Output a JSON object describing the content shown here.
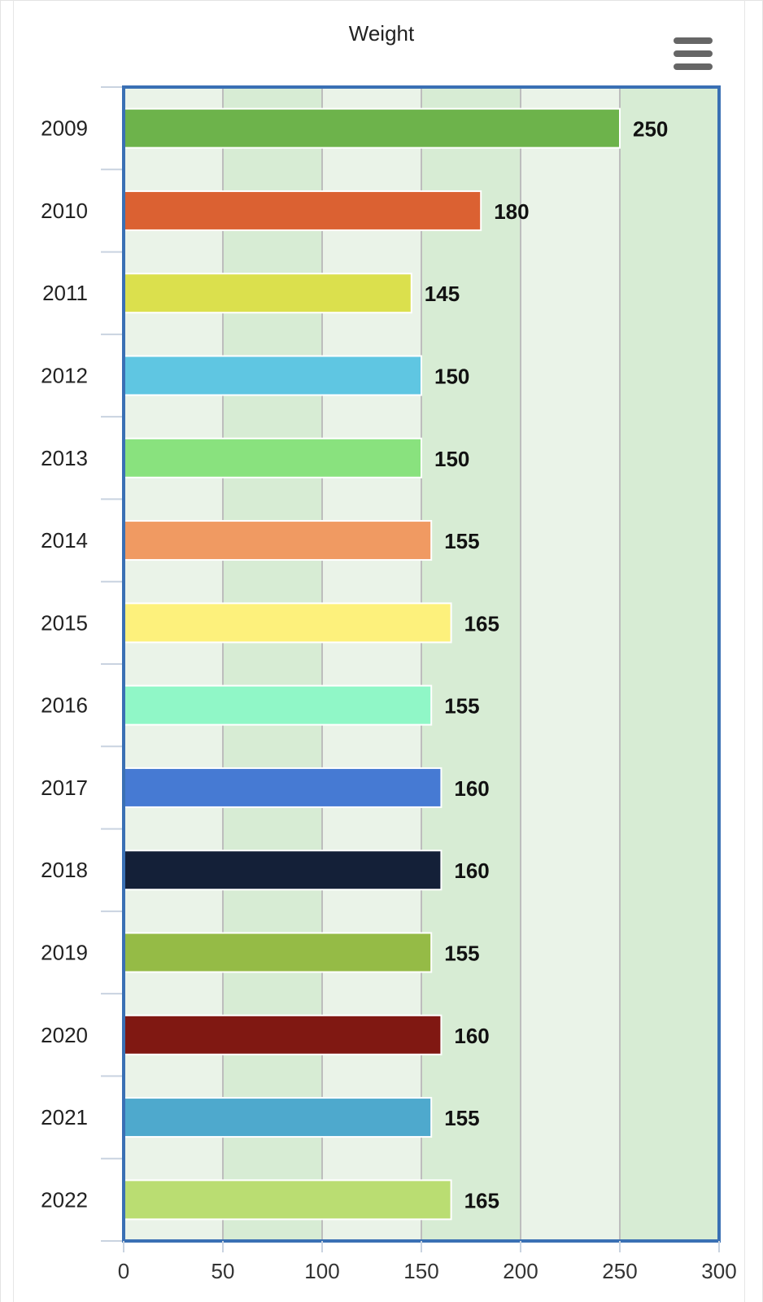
{
  "chart_data": {
    "type": "bar",
    "orientation": "horizontal",
    "title": "Weight",
    "xlabel": "",
    "ylabel": "",
    "categories": [
      "2009",
      "2010",
      "2011",
      "2012",
      "2013",
      "2014",
      "2015",
      "2016",
      "2017",
      "2018",
      "2019",
      "2020",
      "2021",
      "2022"
    ],
    "values": [
      250,
      180,
      145,
      150,
      150,
      155,
      165,
      155,
      160,
      160,
      155,
      160,
      155,
      165
    ],
    "colors": [
      "#6db34b",
      "#db6132",
      "#dbe04d",
      "#5fc6e2",
      "#89e27e",
      "#f09a62",
      "#fdf17c",
      "#90f7c7",
      "#467ad3",
      "#142038",
      "#95bb46",
      "#801812",
      "#4ea9cd",
      "#badd72"
    ],
    "xlim": [
      0,
      300
    ],
    "xticks": [
      0,
      50,
      100,
      150,
      200,
      250,
      300
    ],
    "data_labels": true,
    "grid": true,
    "plot_bands": [
      "#eaf3e8",
      "#d7ecd4"
    ],
    "border_color": "#3a70b4"
  },
  "menu": {
    "icon": "hamburger-menu-icon"
  }
}
